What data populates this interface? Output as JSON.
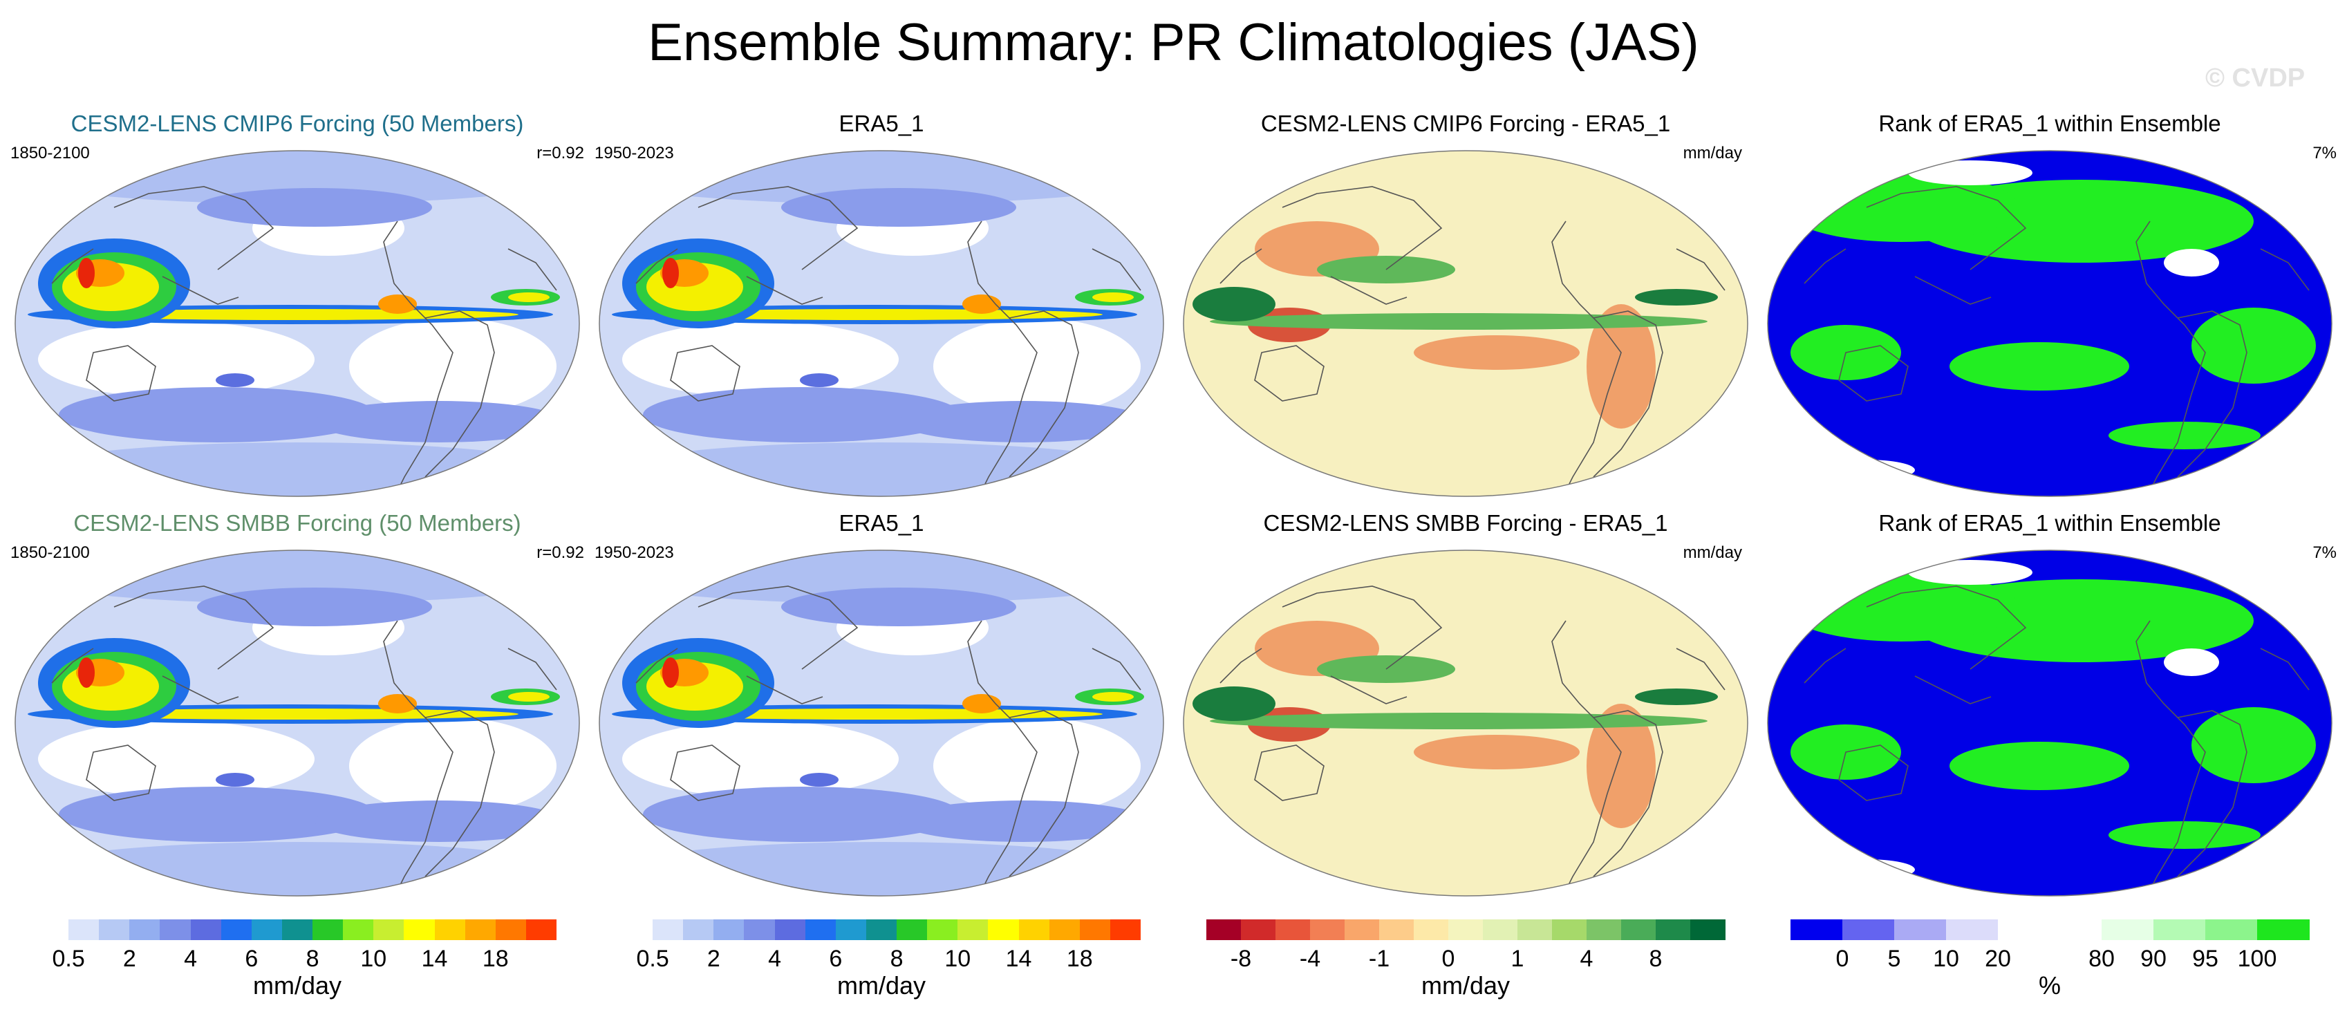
{
  "title": "Ensemble Summary: PR Climatologies (JAS)",
  "watermark": "© CVDP",
  "rows": [
    {
      "model": {
        "title": "CESM2-LENS CMIP6 Forcing (50 Members)",
        "title_color": "#1f6f8b",
        "period": "1850-2100",
        "corr": "r=0.92"
      },
      "obs": {
        "title": "ERA5_1",
        "period": "1950-2023"
      },
      "diff": {
        "title": "CESM2-LENS CMIP6 Forcing - ERA5_1",
        "units": "mm/day"
      },
      "rank": {
        "title": "Rank of ERA5_1 within Ensemble",
        "pct": "7%"
      }
    },
    {
      "model": {
        "title": "CESM2-LENS SMBB Forcing (50 Members)",
        "title_color": "#5f8f6a",
        "period": "1850-2100",
        "corr": "r=0.92"
      },
      "obs": {
        "title": "ERA5_1",
        "period": "1950-2023"
      },
      "diff": {
        "title": "CESM2-LENS SMBB Forcing - ERA5_1",
        "units": "mm/day"
      },
      "rank": {
        "title": "Rank of ERA5_1 within Ensemble",
        "pct": "7%"
      }
    }
  ],
  "colorbars": [
    {
      "name": "precip-model",
      "units": "mm/day",
      "colors": [
        "#ffffff",
        "#dbe4fa",
        "#b6c9f4",
        "#93aef0",
        "#7d90e8",
        "#5d6ce0",
        "#1f6ff0",
        "#1f9ad0",
        "#0f9190",
        "#28c828",
        "#8aee20",
        "#c8ee30",
        "#ffff00",
        "#ffd200",
        "#ffa800",
        "#ff7800",
        "#ff3c00"
      ],
      "ticks": [
        {
          "after": 1,
          "label": "0.5"
        },
        {
          "after": 3,
          "label": "2"
        },
        {
          "after": 5,
          "label": "4"
        },
        {
          "after": 7,
          "label": "6"
        },
        {
          "after": 9,
          "label": "8"
        },
        {
          "after": 11,
          "label": "10"
        },
        {
          "after": 13,
          "label": "14"
        },
        {
          "after": 15,
          "label": "18"
        }
      ]
    },
    {
      "name": "precip-obs",
      "units": "mm/day",
      "colors": [
        "#ffffff",
        "#dbe4fa",
        "#b6c9f4",
        "#93aef0",
        "#7d90e8",
        "#5d6ce0",
        "#1f6ff0",
        "#1f9ad0",
        "#0f9190",
        "#28c828",
        "#8aee20",
        "#c8ee30",
        "#ffff00",
        "#ffd200",
        "#ffa800",
        "#ff7800",
        "#ff3c00"
      ],
      "ticks": [
        {
          "after": 1,
          "label": "0.5"
        },
        {
          "after": 3,
          "label": "2"
        },
        {
          "after": 5,
          "label": "4"
        },
        {
          "after": 7,
          "label": "6"
        },
        {
          "after": 9,
          "label": "8"
        },
        {
          "after": 11,
          "label": "10"
        },
        {
          "after": 13,
          "label": "14"
        },
        {
          "after": 15,
          "label": "18"
        }
      ]
    },
    {
      "name": "difference",
      "units": "mm/day",
      "colors": [
        "#a50026",
        "#d12a2a",
        "#e8553a",
        "#f27f54",
        "#f9a66a",
        "#fdcc8a",
        "#fde9a8",
        "#f4f4be",
        "#e2f1b4",
        "#c8e696",
        "#a6d96a",
        "#7cc467",
        "#4aac58",
        "#1e8a4a",
        "#006837"
      ],
      "ticks": [
        {
          "after": 1,
          "label": "-8"
        },
        {
          "after": 3,
          "label": "-4"
        },
        {
          "after": 5,
          "label": "-1"
        },
        {
          "after": 7,
          "label": "0"
        },
        {
          "after": 9,
          "label": "1"
        },
        {
          "after": 11,
          "label": "4"
        },
        {
          "after": 13,
          "label": "8"
        }
      ]
    },
    {
      "name": "rank",
      "units": "%",
      "colors": [
        "#0000ee",
        "#6464f0",
        "#aaaaf4",
        "#dcdcfa",
        "#ffffff",
        "#ffffff",
        "#e6ffe6",
        "#b4fab4",
        "#8cf48c",
        "#1ee61e"
      ],
      "ticks": [
        {
          "after": 1,
          "label": "0"
        },
        {
          "after": 2,
          "label": "5"
        },
        {
          "after": 3,
          "label": "10"
        },
        {
          "after": 4,
          "label": "20"
        },
        {
          "after": 6,
          "label": "80"
        },
        {
          "after": 7,
          "label": "90"
        },
        {
          "after": 8,
          "label": "95"
        },
        {
          "after": 9,
          "label": "100"
        }
      ]
    }
  ],
  "map_colors": {
    "ocean_base": "#cfdaf6",
    "dry": "#ffffff",
    "light": "#aebff2",
    "mid": "#8a9ceb",
    "blue": "#5b6fdf",
    "deep": "#1f6fe8",
    "teal": "#13a0b8",
    "green": "#2ecc40",
    "yellow": "#f4f000",
    "orange": "#ff9900",
    "red": "#e8250a",
    "diff_base": "#f7f0c0",
    "diff_green": "#5fb85a",
    "diff_dark": "#1a7d3e",
    "diff_orange": "#f0a06a",
    "diff_red": "#d8533a",
    "rank_blue": "#0000e6",
    "rank_green": "#22ee22",
    "rank_white": "#ffffff",
    "coast": "#555555"
  }
}
